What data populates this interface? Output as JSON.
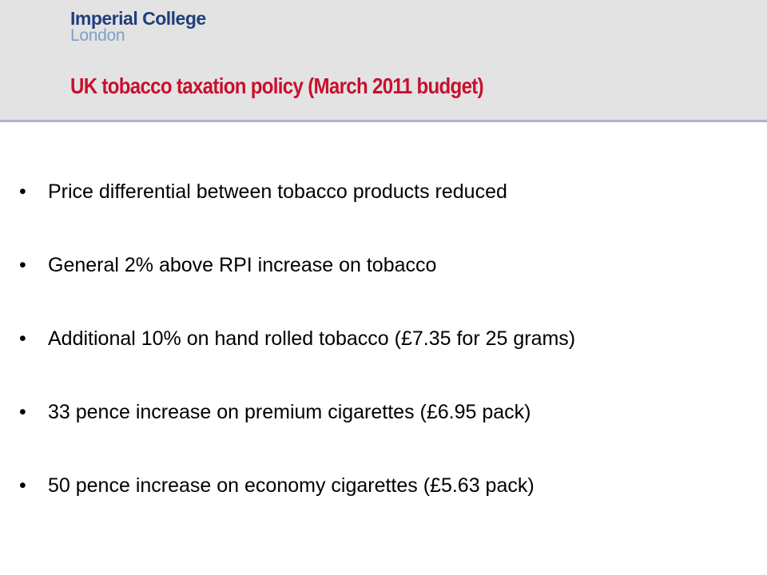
{
  "logo": {
    "line1": "Imperial College",
    "line2": "London"
  },
  "title": "UK tobacco taxation policy  (March 2011 budget)",
  "bullet_symbol": "•",
  "bullets": [
    "Price differential between tobacco products reduced",
    "General 2% above RPI increase on tobacco",
    "Additional 10% on hand rolled tobacco (£7.35 for 25 grams)",
    "33 pence increase on premium cigarettes (£6.95 pack)",
    "50 pence increase on economy cigarettes (£5.63 pack)"
  ],
  "colors": {
    "header_bg": "#e3e3e3",
    "title": "#c8102e",
    "logo_primary": "#1f3f7a",
    "logo_secondary": "#7f9fc9"
  }
}
